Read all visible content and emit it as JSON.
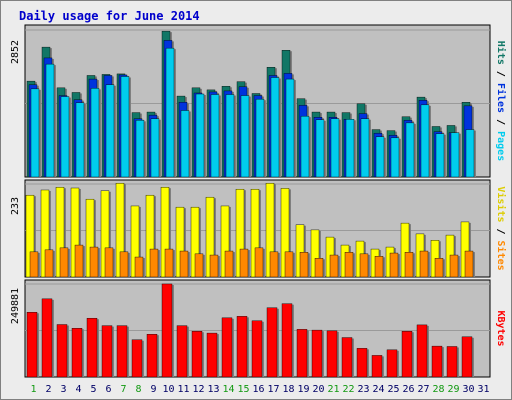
{
  "chart_data": {
    "type": "bar",
    "title": "Daily usage for June 2014",
    "title_color": "#0000cc",
    "background": "#c0c0c0",
    "frame_bg": "#ececec",
    "categories": [
      "1",
      "2",
      "3",
      "4",
      "5",
      "6",
      "7",
      "8",
      "9",
      "10",
      "11",
      "12",
      "13",
      "14",
      "15",
      "16",
      "17",
      "18",
      "19",
      "20",
      "21",
      "22",
      "23",
      "24",
      "25",
      "26",
      "27",
      "28",
      "29",
      "30",
      "31"
    ],
    "weekend_days": [
      "1",
      "7",
      "8",
      "14",
      "15",
      "21",
      "22",
      "28",
      "29"
    ],
    "weekend_color": "#119911",
    "weekday_color": "#000066",
    "panels": [
      {
        "id": "pages-files-hits",
        "ymax_label": "2852",
        "ymax": 2852,
        "right_labels": [
          {
            "text": "Hits",
            "color": "#117766"
          },
          {
            "text": " / ",
            "color": "#000000"
          },
          {
            "text": "Files",
            "color": "#0033dd"
          },
          {
            "text": " / ",
            "color": "#000000"
          },
          {
            "text": "Pages",
            "color": "#00ccee"
          }
        ],
        "series": [
          {
            "name": "Hits",
            "color": "#117766",
            "values": [
              1860,
              2520,
              1730,
              1640,
              1970,
              1990,
              2000,
              1250,
              1260,
              2830,
              1570,
              1730,
              1690,
              1760,
              1850,
              1620,
              2130,
              2460,
              1520,
              1260,
              1260,
              1250,
              1420,
              920,
              900,
              1170,
              1550,
              980,
              1000,
              1450,
              null
            ]
          },
          {
            "name": "Files",
            "color": "#0033dd",
            "values": [
              1790,
              2310,
              1580,
              1500,
              1900,
              1970,
              1980,
              1130,
              1200,
              2650,
              1450,
              1630,
              1650,
              1670,
              1750,
              1580,
              1970,
              2010,
              1390,
              1160,
              1160,
              1120,
              1230,
              850,
              810,
              1100,
              1490,
              880,
              860,
              1380,
              null
            ]
          },
          {
            "name": "Pages",
            "color": "#00ccee",
            "values": [
              1710,
              2190,
              1560,
              1440,
              1720,
              1790,
              1950,
              1100,
              1130,
              2500,
              1290,
              1610,
              1600,
              1600,
              1580,
              1510,
              1930,
              1900,
              1180,
              1110,
              1130,
              1120,
              1130,
              780,
              760,
              1050,
              1400,
              840,
              860,
              920,
              null
            ]
          }
        ]
      },
      {
        "id": "visits-sites",
        "ymax_label": "233",
        "ymax": 233,
        "right_labels": [
          {
            "text": "Visits",
            "color": "#ddcc00"
          },
          {
            "text": " / ",
            "color": "#000000"
          },
          {
            "text": "Sites",
            "color": "#ff8800"
          }
        ],
        "series": [
          {
            "name": "Visits",
            "color": "#ffff00",
            "values": [
              205,
              218,
              225,
              223,
              195,
              216,
              235,
              178,
              205,
              225,
              175,
              175,
              200,
              178,
              220,
              220,
              235,
              222,
              131,
              118,
              100,
              80,
              90,
              70,
              75,
              135,
              108,
              92,
              105,
              138,
              null
            ]
          },
          {
            "name": "Sites",
            "color": "#ff8800",
            "values": [
              63,
              68,
              73,
              80,
              75,
              73,
              63,
              50,
              70,
              70,
              65,
              58,
              55,
              65,
              70,
              73,
              63,
              63,
              62,
              47,
              55,
              62,
              58,
              52,
              60,
              62,
              65,
              47,
              55,
              65,
              null
            ]
          }
        ]
      },
      {
        "id": "kbytes",
        "ymax_label": "249881",
        "ymax": 249881,
        "right_labels": [
          {
            "text": "KBytes",
            "color": "#ff0000"
          }
        ],
        "series": [
          {
            "name": "KBytes",
            "color": "#ff0000",
            "values": [
              174000,
              210000,
              141000,
              131000,
              158000,
              138000,
              138000,
              100000,
              115000,
              250000,
              138000,
              123000,
              118000,
              159000,
              163000,
              151000,
              186000,
              197000,
              128000,
              126000,
              124000,
              106000,
              77000,
              58000,
              73000,
              123000,
              140000,
              83000,
              82000,
              108000,
              null
            ]
          }
        ]
      }
    ]
  }
}
